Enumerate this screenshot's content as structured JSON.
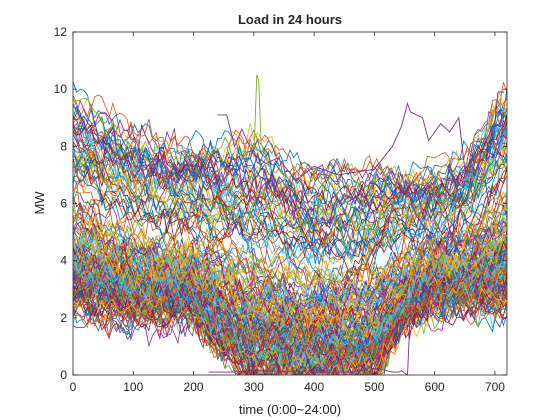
{
  "chart_data": {
    "type": "line",
    "title": "Load in 24 hours",
    "xlabel": "time (0:00~24:00)",
    "ylabel": "MW",
    "xlim": [
      0,
      720
    ],
    "ylim": [
      0,
      12
    ],
    "x_ticks": [
      0,
      100,
      200,
      300,
      400,
      500,
      600,
      700
    ],
    "y_ticks": [
      0,
      2,
      4,
      6,
      8,
      10,
      12
    ],
    "grid": false,
    "legend": "none",
    "series_count_approx": 200,
    "series_colors": [
      "#0072BD",
      "#D95319",
      "#EDB120",
      "#7E2F8E",
      "#77AC30",
      "#4DBEEE",
      "#A2142F"
    ],
    "envelope": {
      "x": [
        0,
        100,
        200,
        250,
        300,
        400,
        500,
        550,
        600,
        650,
        700,
        720
      ],
      "upper": [
        9.7,
        8.5,
        8.0,
        8.1,
        8.3,
        7.2,
        7.4,
        7.2,
        7.0,
        7.6,
        9.5,
        9.8
      ],
      "median": [
        4.6,
        3.8,
        3.6,
        3.2,
        2.7,
        2.4,
        2.5,
        3.2,
        3.8,
        3.9,
        4.8,
        5.2
      ],
      "lower": [
        2.5,
        2.2,
        2.2,
        0.8,
        0.1,
        0.0,
        0.1,
        2.0,
        2.5,
        2.7,
        2.4,
        2.5
      ]
    },
    "highlighted_series": [
      {
        "color": "#7E2F8E",
        "points": [
          [
            240,
            9.1
          ],
          [
            255,
            9.1
          ],
          [
            268,
            8.0
          ],
          [
            280,
            8.6
          ],
          [
            300,
            7.7
          ],
          [
            320,
            7.4
          ],
          [
            340,
            7.6
          ],
          [
            370,
            6.8
          ],
          [
            400,
            7.3
          ],
          [
            440,
            7.0
          ],
          [
            500,
            7.2
          ],
          [
            530,
            8.0
          ],
          [
            545,
            8.7
          ],
          [
            555,
            9.5
          ],
          [
            560,
            9.2
          ],
          [
            580,
            9.0
          ],
          [
            590,
            8.2
          ],
          [
            610,
            8.8
          ],
          [
            625,
            8.5
          ],
          [
            640,
            9.0
          ],
          [
            650,
            7.2
          ],
          [
            680,
            7.9
          ],
          [
            700,
            8.9
          ],
          [
            705,
            9.9
          ],
          [
            715,
            9.9
          ]
        ]
      },
      {
        "color": "#77AC30",
        "points": [
          [
            300,
            7.6
          ],
          [
            305,
            10.5
          ],
          [
            308,
            10.3
          ],
          [
            312,
            8.1
          ],
          [
            325,
            7.3
          ]
        ]
      },
      {
        "color": "#7E2F8E",
        "points": [
          [
            225,
            0.1
          ],
          [
            255,
            0.1
          ],
          [
            265,
            0.1
          ],
          [
            300,
            0.15
          ],
          [
            400,
            0.1
          ],
          [
            470,
            0.1
          ],
          [
            490,
            0.25
          ],
          [
            510,
            0.2
          ],
          [
            530,
            0.1
          ],
          [
            540,
            0.1
          ],
          [
            545,
            0.15
          ],
          [
            548,
            0.1
          ],
          [
            555,
            0.0
          ],
          [
            560,
            2.4
          ]
        ]
      }
    ]
  }
}
